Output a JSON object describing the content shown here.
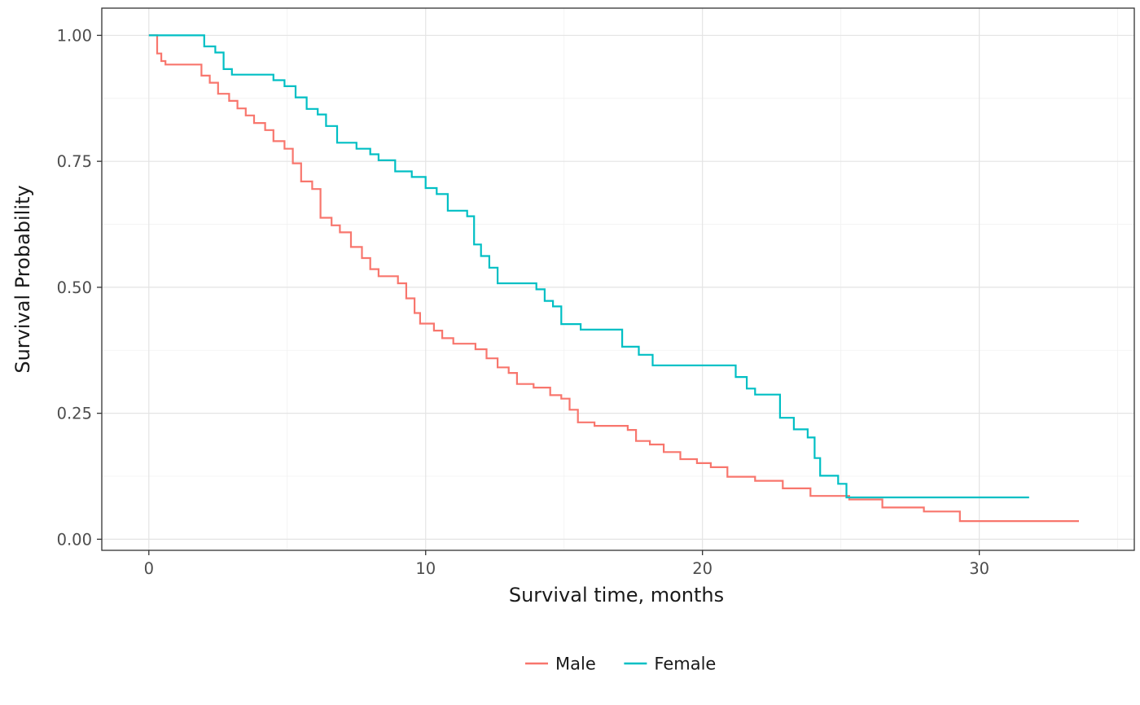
{
  "figure": {
    "background": "#FFFFFF",
    "panel_border_color": "#333333",
    "grid_major_color": "#E4E4E4",
    "grid_minor_color": "#F1F1F1",
    "tick_color": "#333333",
    "tick_label_color": "#4D4D4D",
    "axis_title_color": "#1A1A1A"
  },
  "chart_data": {
    "type": "line",
    "subtype": "kaplan-meier-step",
    "title": "",
    "xlabel": "Survival time, months",
    "ylabel": "Survival Probability",
    "xlim": [
      -1.7,
      35.6
    ],
    "ylim": [
      -0.022,
      1.054
    ],
    "x_ticks": [
      0,
      10,
      20,
      30
    ],
    "x_tick_labels": [
      "0",
      "10",
      "20",
      "30"
    ],
    "x_minor_ticks": [
      5,
      15,
      25,
      35
    ],
    "y_ticks": [
      0,
      0.25,
      0.5,
      0.75,
      1.0
    ],
    "y_tick_labels": [
      "0.00",
      "0.25",
      "0.50",
      "0.75",
      "1.00"
    ],
    "y_minor_ticks": [
      0.125,
      0.375,
      0.625,
      0.875
    ],
    "grid": true,
    "legend_position": "bottom",
    "series": [
      {
        "name": "Male",
        "color": "#F8766D",
        "points": [
          [
            0,
            1.0
          ],
          [
            0.3,
            0.964
          ],
          [
            0.45,
            0.949
          ],
          [
            0.6,
            0.942
          ],
          [
            1.9,
            0.92
          ],
          [
            2.2,
            0.906
          ],
          [
            2.5,
            0.884
          ],
          [
            2.9,
            0.87
          ],
          [
            3.2,
            0.855
          ],
          [
            3.5,
            0.841
          ],
          [
            3.8,
            0.826
          ],
          [
            4.2,
            0.812
          ],
          [
            4.5,
            0.79
          ],
          [
            4.9,
            0.775
          ],
          [
            5.2,
            0.746
          ],
          [
            5.5,
            0.71
          ],
          [
            5.9,
            0.695
          ],
          [
            6.2,
            0.638
          ],
          [
            6.6,
            0.623
          ],
          [
            6.9,
            0.609
          ],
          [
            7.3,
            0.58
          ],
          [
            7.7,
            0.558
          ],
          [
            8.0,
            0.536
          ],
          [
            8.3,
            0.522
          ],
          [
            9.0,
            0.508
          ],
          [
            9.3,
            0.478
          ],
          [
            9.6,
            0.449
          ],
          [
            9.8,
            0.428
          ],
          [
            10.3,
            0.414
          ],
          [
            10.6,
            0.399
          ],
          [
            11.0,
            0.388
          ],
          [
            11.8,
            0.377
          ],
          [
            12.2,
            0.359
          ],
          [
            12.6,
            0.341
          ],
          [
            13.0,
            0.33
          ],
          [
            13.3,
            0.308
          ],
          [
            13.9,
            0.301
          ],
          [
            14.5,
            0.286
          ],
          [
            14.9,
            0.279
          ],
          [
            15.2,
            0.257
          ],
          [
            15.5,
            0.232
          ],
          [
            16.1,
            0.225
          ],
          [
            17.3,
            0.217
          ],
          [
            17.6,
            0.195
          ],
          [
            18.1,
            0.188
          ],
          [
            18.6,
            0.173
          ],
          [
            19.2,
            0.159
          ],
          [
            19.8,
            0.151
          ],
          [
            20.3,
            0.143
          ],
          [
            20.9,
            0.124
          ],
          [
            21.9,
            0.116
          ],
          [
            22.9,
            0.101
          ],
          [
            23.9,
            0.086
          ],
          [
            25.3,
            0.079
          ],
          [
            26.5,
            0.063
          ],
          [
            28.0,
            0.055
          ],
          [
            29.3,
            0.036
          ],
          [
            33.6,
            0.036
          ]
        ]
      },
      {
        "name": "Female",
        "color": "#00BFC4",
        "points": [
          [
            0,
            1.0
          ],
          [
            2.0,
            0.978
          ],
          [
            2.4,
            0.966
          ],
          [
            2.7,
            0.933
          ],
          [
            3.0,
            0.922
          ],
          [
            4.5,
            0.911
          ],
          [
            4.9,
            0.899
          ],
          [
            5.3,
            0.877
          ],
          [
            5.7,
            0.854
          ],
          [
            6.1,
            0.843
          ],
          [
            6.4,
            0.82
          ],
          [
            6.8,
            0.787
          ],
          [
            7.5,
            0.775
          ],
          [
            8.0,
            0.764
          ],
          [
            8.3,
            0.752
          ],
          [
            8.9,
            0.73
          ],
          [
            9.5,
            0.719
          ],
          [
            10.0,
            0.697
          ],
          [
            10.4,
            0.685
          ],
          [
            10.8,
            0.652
          ],
          [
            11.5,
            0.641
          ],
          [
            11.75,
            0.585
          ],
          [
            12.0,
            0.562
          ],
          [
            12.3,
            0.539
          ],
          [
            12.6,
            0.508
          ],
          [
            14.0,
            0.496
          ],
          [
            14.3,
            0.473
          ],
          [
            14.6,
            0.462
          ],
          [
            14.9,
            0.427
          ],
          [
            15.6,
            0.416
          ],
          [
            17.1,
            0.382
          ],
          [
            17.7,
            0.366
          ],
          [
            18.2,
            0.345
          ],
          [
            21.2,
            0.322
          ],
          [
            21.6,
            0.299
          ],
          [
            21.9,
            0.287
          ],
          [
            22.8,
            0.241
          ],
          [
            23.3,
            0.218
          ],
          [
            23.8,
            0.202
          ],
          [
            24.05,
            0.161
          ],
          [
            24.25,
            0.126
          ],
          [
            24.9,
            0.11
          ],
          [
            25.2,
            0.083
          ],
          [
            31.8,
            0.083
          ]
        ]
      }
    ]
  }
}
